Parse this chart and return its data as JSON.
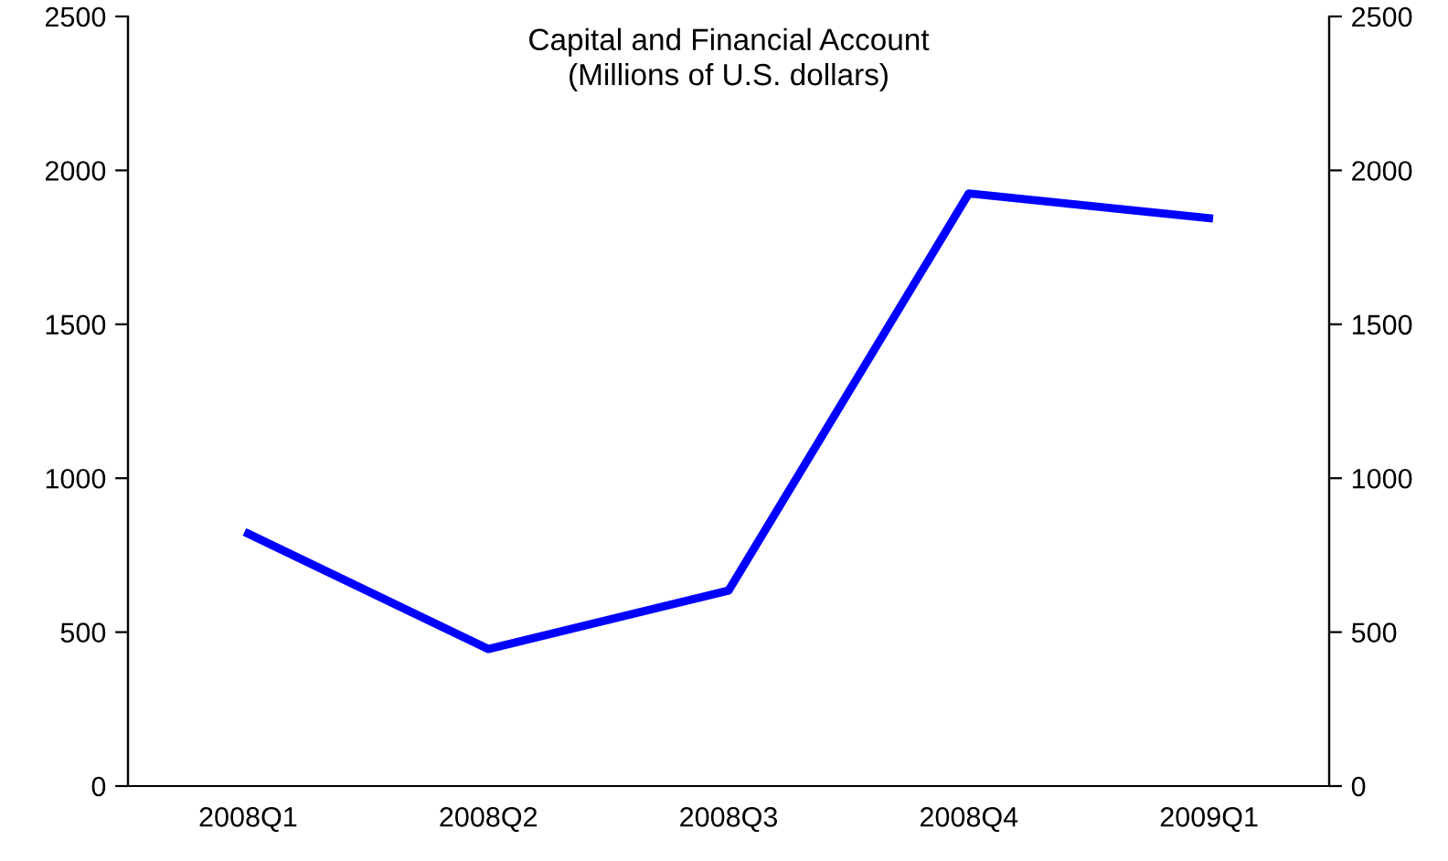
{
  "chart_data": {
    "type": "line",
    "title": "Capital and Financial Account\n(Millions of U.S. dollars)",
    "categories": [
      "2008Q1",
      "2008Q2",
      "2008Q3",
      "2008Q4",
      "2009Q1"
    ],
    "series": [
      {
        "color": "#0000ff",
        "values": [
          820,
          445,
          635,
          1925,
          1845
        ]
      }
    ],
    "ylim": [
      0,
      2500
    ],
    "yticks": [
      0,
      500,
      1000,
      1500,
      2000,
      2500
    ],
    "y2lim": [
      0,
      2500
    ],
    "y2ticks": [
      0,
      500,
      1000,
      1500,
      2000,
      2500
    ],
    "grid": false,
    "legend": false,
    "marker": "none",
    "line_style": "solid"
  }
}
